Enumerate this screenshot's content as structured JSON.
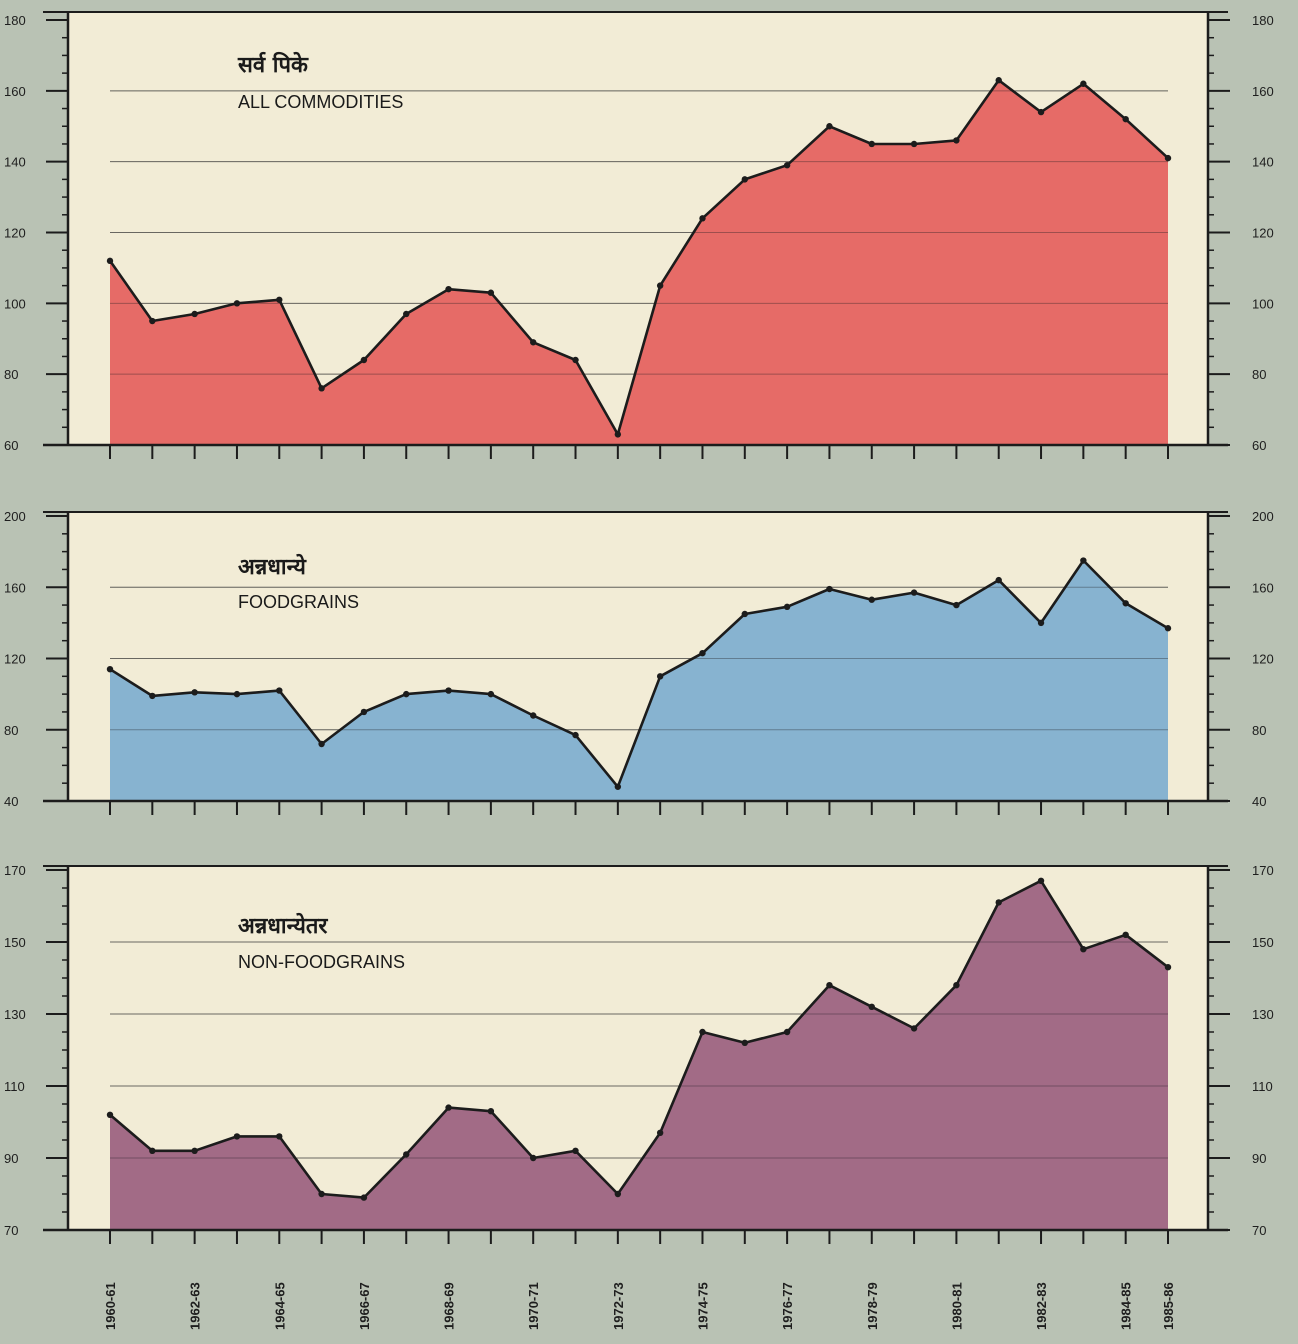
{
  "chart_data": [
    {
      "type": "area",
      "title_hi": "सर्व पिके",
      "title_en": "ALL COMMODITIES",
      "ylim": [
        60,
        180
      ],
      "yticks": [
        60,
        80,
        100,
        120,
        140,
        160,
        180
      ],
      "fill": "#e5605d",
      "grid": true,
      "values": [
        112,
        95,
        97,
        100,
        101,
        76,
        84,
        97,
        104,
        103,
        89,
        84,
        63,
        105,
        124,
        135,
        139,
        150,
        145,
        145,
        146,
        163,
        154,
        162,
        152,
        141
      ]
    },
    {
      "type": "area",
      "title_hi": "अन्नधान्ये",
      "title_en": "FOODGRAINS",
      "ylim": [
        40,
        200
      ],
      "yticks": [
        40,
        80,
        120,
        160,
        200
      ],
      "fill": "#7eaecf",
      "grid": true,
      "values": [
        114,
        99,
        101,
        100,
        102,
        72,
        90,
        100,
        102,
        100,
        88,
        77,
        48,
        110,
        123,
        145,
        149,
        159,
        153,
        157,
        150,
        164,
        140,
        175,
        151,
        137
      ]
    },
    {
      "type": "area",
      "title_hi": "अन्नधान्येतर",
      "title_en": "NON-FOODGRAINS",
      "ylim": [
        70,
        170
      ],
      "yticks": [
        70,
        90,
        110,
        130,
        150,
        170
      ],
      "fill": "#9b5f7f",
      "grid": true,
      "values": [
        102,
        92,
        92,
        96,
        96,
        80,
        79,
        91,
        104,
        103,
        90,
        92,
        80,
        97,
        125,
        122,
        125,
        138,
        132,
        126,
        138,
        161,
        167,
        148,
        152,
        143
      ]
    }
  ],
  "x_labels": [
    "1960-61",
    "1962-63",
    "1964-65",
    "1966-67",
    "1968-69",
    "1970-71",
    "1972-73",
    "1974-75",
    "1976-77",
    "1978-79",
    "1980-81",
    "1982-83",
    "1984-85",
    "1985-86"
  ],
  "colors": {
    "paper": "#f2ecd6",
    "line": "#1c1c1c",
    "background": "#b9c2b4"
  }
}
